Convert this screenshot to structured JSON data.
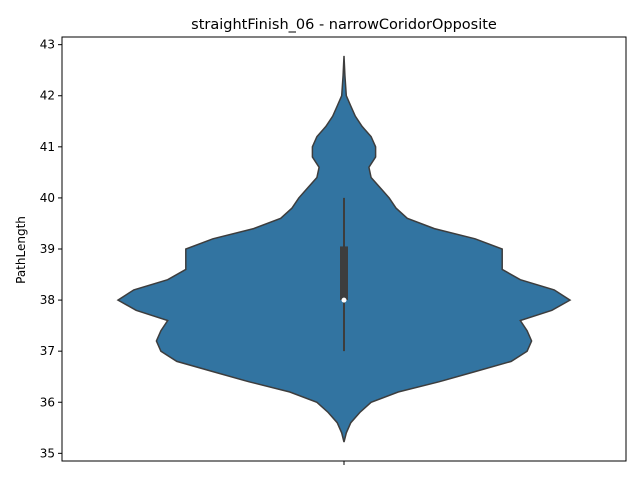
{
  "chart_data": {
    "type": "violin",
    "title": "straightFinish_06 - narrowCoridorOpposite",
    "xlabel": "",
    "ylabel": "PathLength",
    "ylim": [
      34.85,
      43.15
    ],
    "yticks": [
      35,
      36,
      37,
      38,
      39,
      40,
      41,
      42,
      43
    ],
    "x_ticks": [
      ""
    ],
    "grid": false,
    "legend": "none",
    "color": "#3274a1",
    "edge_color": "#3d3d3d",
    "density_profile": [
      [
        35.22,
        0.0
      ],
      [
        35.4,
        0.01
      ],
      [
        35.6,
        0.03
      ],
      [
        35.8,
        0.07
      ],
      [
        36.0,
        0.12
      ],
      [
        36.2,
        0.24
      ],
      [
        36.4,
        0.42
      ],
      [
        36.6,
        0.58
      ],
      [
        36.8,
        0.74
      ],
      [
        37.0,
        0.81
      ],
      [
        37.2,
        0.83
      ],
      [
        37.4,
        0.81
      ],
      [
        37.6,
        0.78
      ],
      [
        37.8,
        0.92
      ],
      [
        38.0,
        1.0
      ],
      [
        38.2,
        0.93
      ],
      [
        38.4,
        0.78
      ],
      [
        38.6,
        0.7
      ],
      [
        38.8,
        0.7
      ],
      [
        39.0,
        0.7
      ],
      [
        39.2,
        0.58
      ],
      [
        39.4,
        0.4
      ],
      [
        39.6,
        0.28
      ],
      [
        39.8,
        0.23
      ],
      [
        40.0,
        0.2
      ],
      [
        40.2,
        0.16
      ],
      [
        40.4,
        0.12
      ],
      [
        40.6,
        0.11
      ],
      [
        40.8,
        0.14
      ],
      [
        41.0,
        0.14
      ],
      [
        41.2,
        0.12
      ],
      [
        41.4,
        0.08
      ],
      [
        41.6,
        0.05
      ],
      [
        41.8,
        0.03
      ],
      [
        42.0,
        0.01
      ],
      [
        42.4,
        0.004
      ],
      [
        42.78,
        0.0
      ]
    ],
    "box": {
      "q1": 38.0,
      "median": 38.0,
      "q3": 39.05,
      "whisker_low": 37.0,
      "whisker_high": 40.0
    }
  }
}
